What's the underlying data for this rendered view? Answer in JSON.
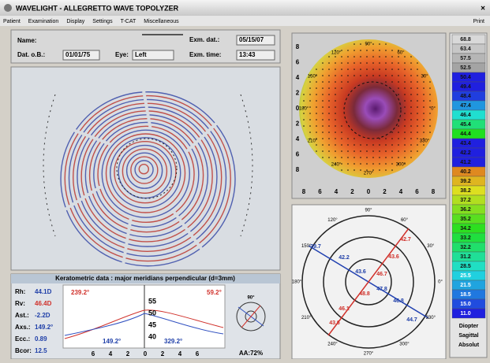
{
  "window": {
    "title": "WAVELIGHT - ALLEGRETTO WAVE TOPOLYZER",
    "close": "×"
  },
  "menu": {
    "items": [
      "Patient",
      "Examination",
      "Display",
      "Settings",
      "T-CAT",
      "Miscellaneous"
    ],
    "print": "Print"
  },
  "patient": {
    "name_label": "Name:",
    "dob_label": "Dat. o.B.:",
    "dob": "01/01/75",
    "eye_label": "Eye:",
    "eye": "Left",
    "exam_date_label": "Exm. dat.:",
    "exam_date": "05/15/07",
    "exam_time_label": "Exm. time:",
    "exam_time": "13:43"
  },
  "keratometry": {
    "title": "Keratometric data : major meridians perpendicular (d=3mm)",
    "rows": [
      [
        "Rh:",
        "44.1D"
      ],
      [
        "Rv:",
        "46.4D"
      ],
      [
        "Ast.:",
        "-2.2D"
      ],
      [
        "Axs.:",
        "149.2°"
      ],
      [
        "Ecc.:",
        "0.89"
      ],
      [
        "Bcor:",
        "12.5"
      ]
    ],
    "profile": {
      "red_left": "239.2°",
      "red_right": "59.2°",
      "blue_left": "149.2°",
      "blue_right": "329.2°",
      "y_labels": [
        "55",
        "50",
        "45",
        "40"
      ],
      "x_labels": [
        "6",
        "4",
        "2",
        "0",
        "2",
        "4",
        "6"
      ],
      "inset_label": "90°",
      "aa": "AA:72%"
    }
  },
  "topography": {
    "x_labels": [
      "8",
      "6",
      "4",
      "2",
      "0",
      "2",
      "4",
      "6",
      "8"
    ],
    "y_labels": [
      "8",
      "6",
      "4",
      "2",
      "0",
      "2",
      "4",
      "6",
      "8"
    ],
    "angles": [
      "90°",
      "60°",
      "30°",
      "0°",
      "330°",
      "300°",
      "270°",
      "240°",
      "210°",
      "180°",
      "150°",
      "120°"
    ]
  },
  "polar": {
    "angles": [
      "90°",
      "60°",
      "30°",
      "0°",
      "330°",
      "300°",
      "270°",
      "240°",
      "210°",
      "180°",
      "150°",
      "120°"
    ],
    "values": [
      {
        "text": "39.7",
        "color": "#1f3fa8"
      },
      {
        "text": "42.2",
        "color": "#1f3fa8"
      },
      {
        "text": "43.6",
        "color": "#1f3fa8"
      },
      {
        "text": "47.8",
        "color": "#1f3fa8"
      },
      {
        "text": "46.8",
        "color": "#1f3fa8"
      },
      {
        "text": "44.7",
        "color": "#1f3fa8"
      },
      {
        "text": "42.7",
        "color": "#d0302a"
      },
      {
        "text": "43.6",
        "color": "#d0302a"
      },
      {
        "text": "46.7",
        "color": "#d0302a"
      },
      {
        "text": "48.8",
        "color": "#d0302a"
      },
      {
        "text": "46.1",
        "color": "#d0302a"
      },
      {
        "text": "43.6",
        "color": "#d0302a"
      }
    ]
  },
  "scale": {
    "values": [
      "68.8",
      "63.4",
      "57.5",
      "52.5",
      "50.4",
      "49.4",
      "48.4",
      "47.4",
      "46.4",
      "45.4",
      "44.4",
      "43.4",
      "42.2",
      "41.2",
      "40.2",
      "39.2",
      "38.2",
      "37.2",
      "36.2",
      "35.2",
      "34.2",
      "33.2",
      "32.2",
      "31.2",
      "28.5",
      "25.5",
      "21.5",
      "18.5",
      "15.0",
      "11.0"
    ],
    "unit": "Diopter",
    "mode": "Sagittal",
    "type": "Absolut"
  }
}
